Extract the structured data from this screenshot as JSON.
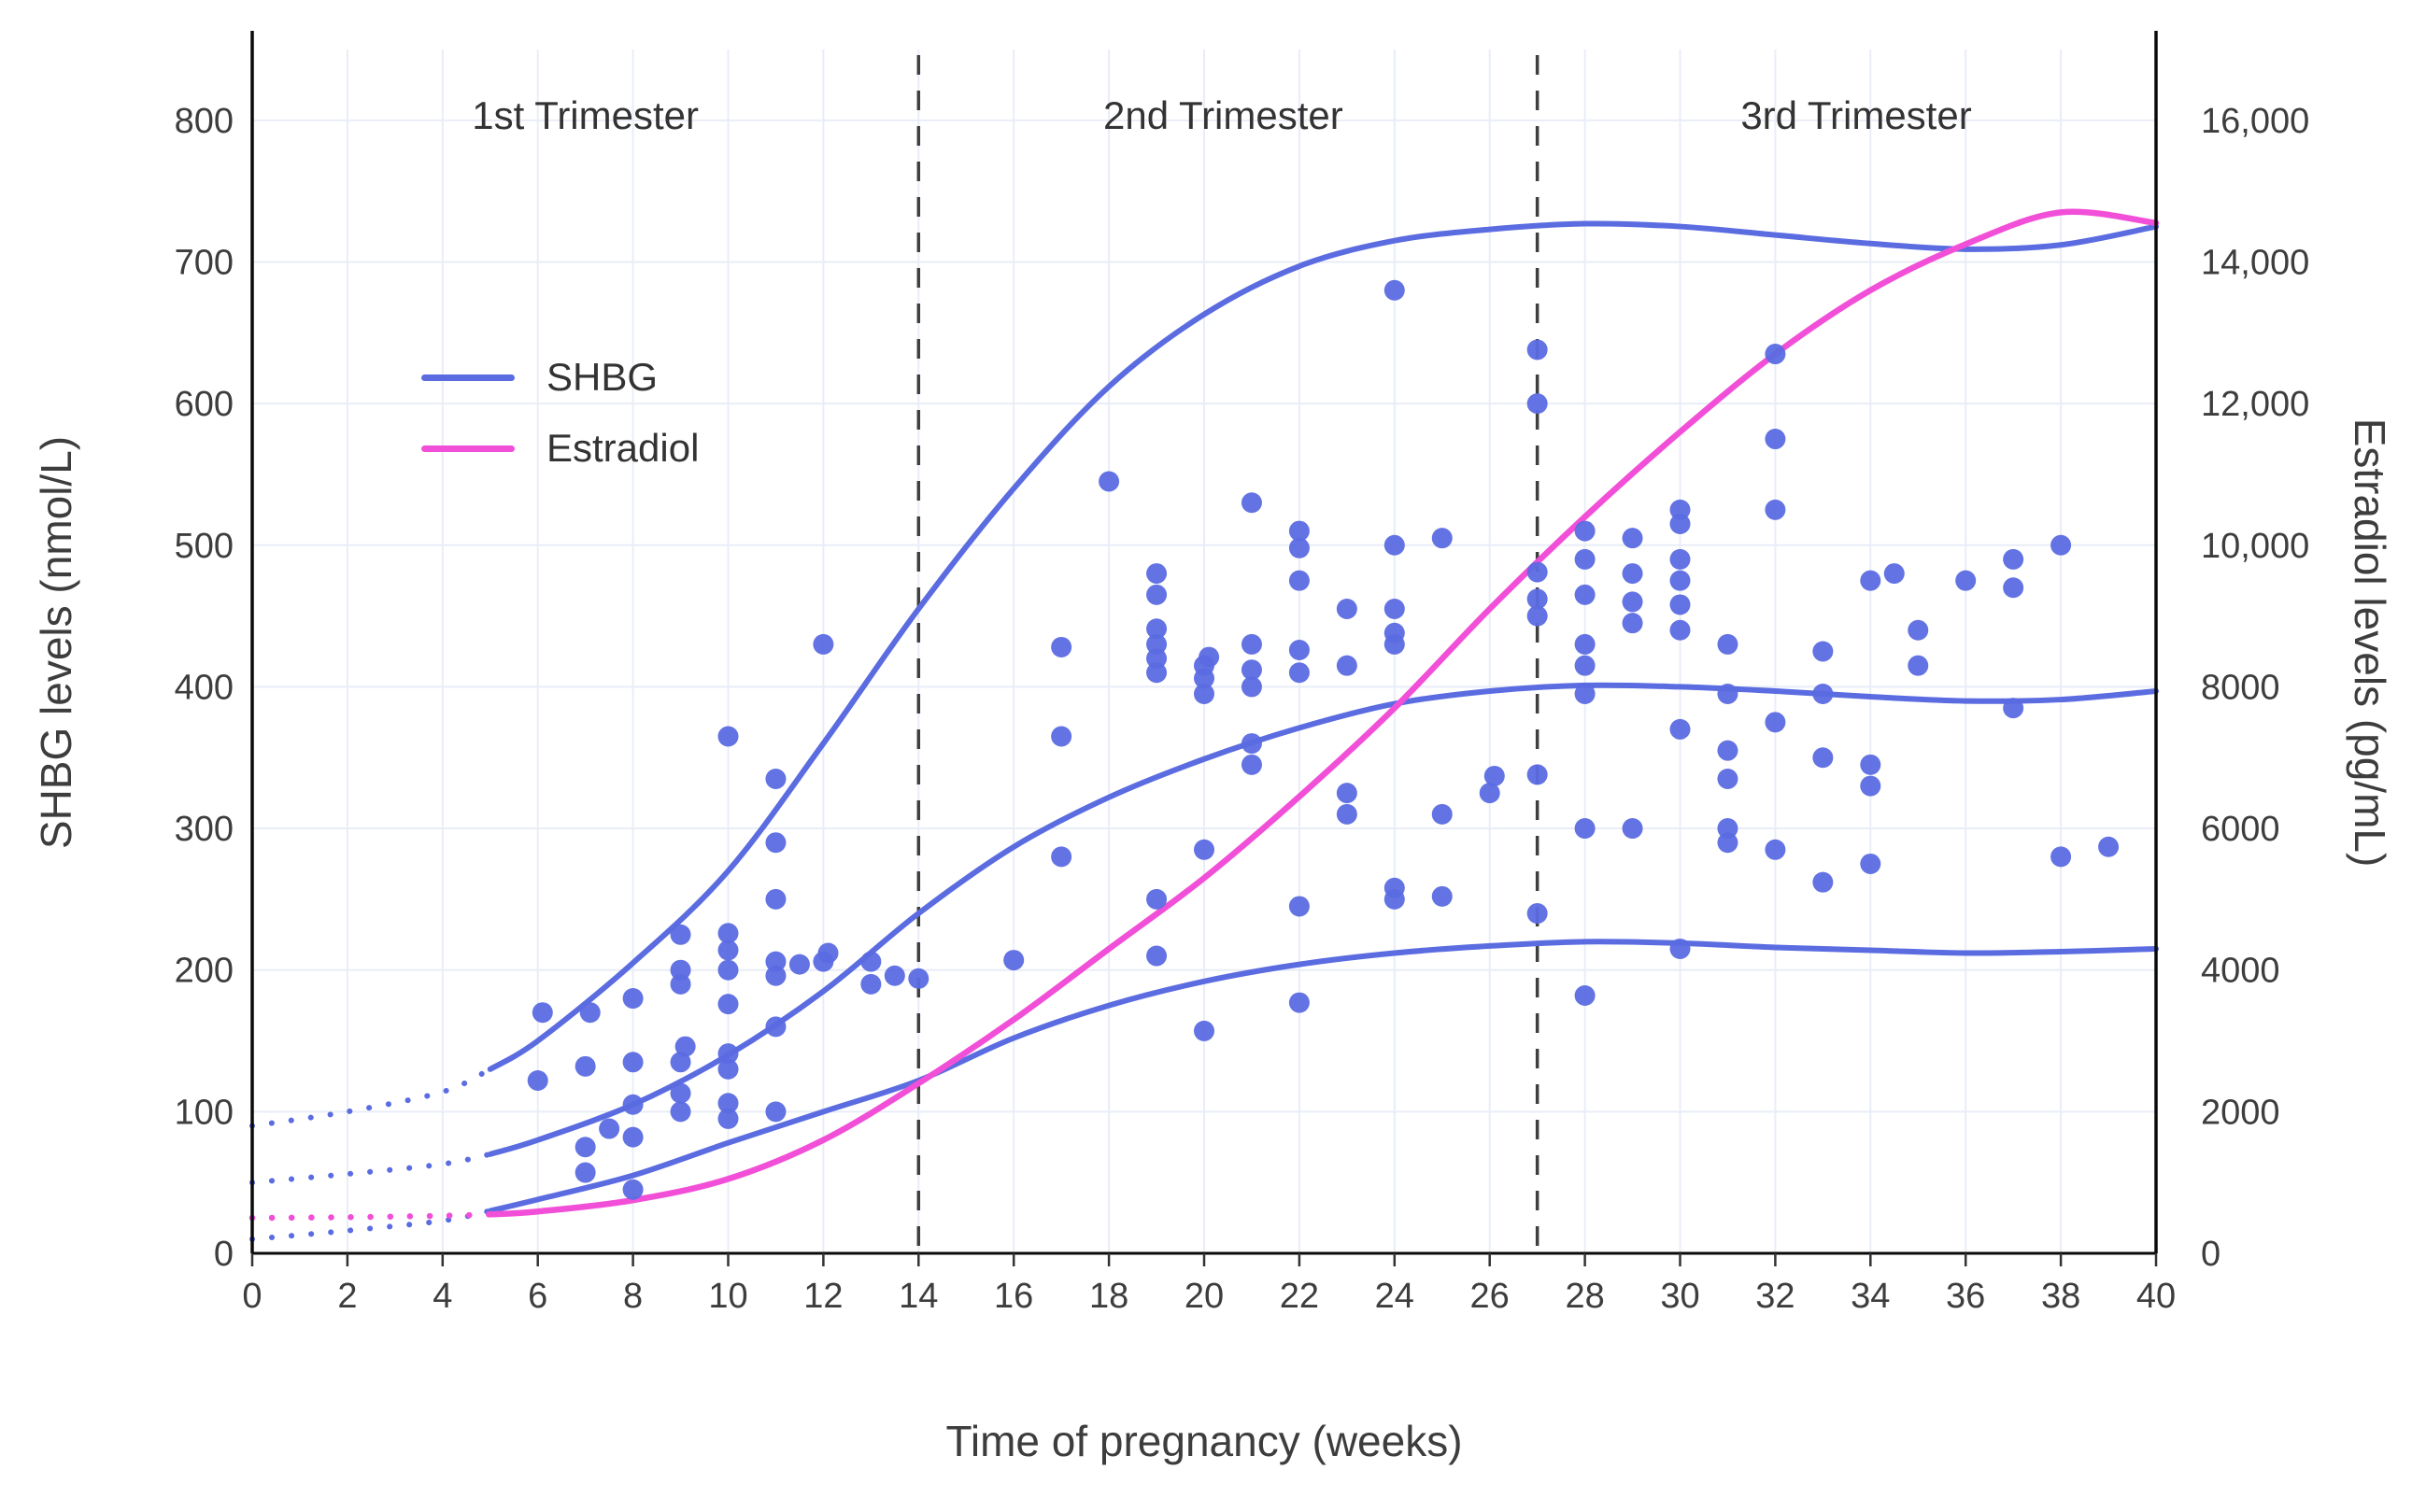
{
  "chart_data": {
    "type": "scatter+line",
    "title": "",
    "xlabel": "Time of pregnancy (weeks)",
    "x_axis": {
      "range": [
        0,
        40
      ],
      "ticks": [
        0,
        2,
        4,
        6,
        8,
        10,
        12,
        14,
        16,
        18,
        20,
        22,
        24,
        26,
        28,
        30,
        32,
        34,
        36,
        38,
        40
      ]
    },
    "left_axis": {
      "label": "SHBG levels (nmol/L)",
      "range": [
        0,
        850
      ],
      "ticks": [
        0,
        100,
        200,
        300,
        400,
        500,
        600,
        700,
        800
      ]
    },
    "right_axis": {
      "label": "Estradiol levels (pg/mL)",
      "range": [
        0,
        17000
      ],
      "tick_values": [
        0,
        2000,
        4000,
        6000,
        8000,
        10000,
        12000,
        14000,
        16000
      ],
      "tick_labels": [
        "0",
        "2000",
        "4000",
        "6000",
        "8000",
        "10,000",
        "12,000",
        "14,000",
        "16,000"
      ]
    },
    "grid": true,
    "legend_position": "upper-left-inside",
    "legend": [
      {
        "label": "SHBG",
        "color": "#5b6ce1"
      },
      {
        "label": "Estradiol",
        "color": "#f24fd8"
      }
    ],
    "trimester_labels": [
      {
        "text": "1st Trimester",
        "week": 7.0
      },
      {
        "text": "2nd Trimester",
        "week": 20.4
      },
      {
        "text": "3rd Trimester",
        "week": 33.7
      }
    ],
    "dividers_weeks": [
      14,
      27
    ],
    "solid_from_week": 5,
    "colors": {
      "shbg": "#5b6ce1",
      "estradiol": "#f24fd8",
      "grid": "#e9edf7",
      "axis": "#0a0a0a",
      "divider": "#3f3f3f",
      "tick_text": "#3d3d3d"
    },
    "curves": [
      {
        "name": "shbg-upper-curve",
        "axis": "left",
        "color": "#5b6ce1",
        "width": 6,
        "x": [
          0,
          2,
          4,
          5,
          6,
          8,
          10,
          12,
          14,
          16,
          18,
          20,
          22,
          24,
          26,
          28,
          30,
          32,
          34,
          36,
          38,
          40
        ],
        "y": [
          90,
          100,
          114,
          130,
          150,
          205,
          270,
          360,
          455,
          540,
          612,
          663,
          697,
          715,
          723,
          727,
          725,
          719,
          713,
          709,
          712,
          725
        ]
      },
      {
        "name": "shbg-median-curve",
        "axis": "left",
        "color": "#5b6ce1",
        "width": 6,
        "x": [
          0,
          2,
          4,
          5,
          6,
          8,
          10,
          12,
          14,
          16,
          18,
          20,
          22,
          24,
          26,
          28,
          30,
          32,
          34,
          36,
          38,
          40
        ],
        "y": [
          50,
          56,
          63,
          70,
          80,
          105,
          140,
          185,
          240,
          287,
          322,
          349,
          371,
          388,
          397,
          401,
          400,
          397,
          393,
          390,
          391,
          397
        ]
      },
      {
        "name": "shbg-lower-curve",
        "axis": "left",
        "color": "#5b6ce1",
        "width": 6,
        "x": [
          0,
          2,
          4,
          5,
          6,
          8,
          10,
          12,
          14,
          16,
          18,
          20,
          22,
          24,
          26,
          28,
          30,
          32,
          34,
          36,
          38,
          40
        ],
        "y": [
          10,
          16,
          23,
          30,
          38,
          55,
          78,
          100,
          122,
          152,
          175,
          192,
          204,
          212,
          217,
          220,
          219,
          216,
          214,
          212,
          213,
          215
        ]
      },
      {
        "name": "estradiol-curve",
        "axis": "right",
        "color": "#f24fd8",
        "width": 6.5,
        "x": [
          0,
          2,
          4,
          5,
          6,
          8,
          10,
          12,
          14,
          16,
          18,
          20,
          22,
          24,
          26,
          28,
          30,
          32,
          34,
          36,
          38,
          40
        ],
        "y": [
          500,
          510,
          530,
          550,
          590,
          750,
          1050,
          1600,
          2400,
          3300,
          4300,
          5300,
          6450,
          7700,
          9100,
          10400,
          11600,
          12700,
          13600,
          14250,
          14700,
          14550
        ]
      }
    ],
    "scatter": {
      "name": "shbg-individual-measurements",
      "axis": "left",
      "color": "#5b6ce1",
      "points": [
        [
          6,
          122
        ],
        [
          6.1,
          170
        ],
        [
          7,
          57
        ],
        [
          7,
          75
        ],
        [
          7,
          132
        ],
        [
          7.1,
          170
        ],
        [
          7.5,
          88
        ],
        [
          8,
          45
        ],
        [
          8,
          82
        ],
        [
          8,
          105
        ],
        [
          8,
          135
        ],
        [
          8,
          180
        ],
        [
          9,
          100
        ],
        [
          9,
          113
        ],
        [
          9,
          135
        ],
        [
          9.1,
          146
        ],
        [
          9,
          190
        ],
        [
          9,
          200
        ],
        [
          9,
          225
        ],
        [
          10,
          95
        ],
        [
          10,
          106
        ],
        [
          10,
          130
        ],
        [
          10,
          141
        ],
        [
          10,
          176
        ],
        [
          10,
          200
        ],
        [
          10,
          214
        ],
        [
          10,
          226
        ],
        [
          10,
          365
        ],
        [
          11,
          100
        ],
        [
          11,
          160
        ],
        [
          11,
          196
        ],
        [
          11,
          206
        ],
        [
          11,
          250
        ],
        [
          11,
          290
        ],
        [
          11,
          335
        ],
        [
          11.5,
          204
        ],
        [
          12,
          206
        ],
        [
          12.1,
          212
        ],
        [
          12,
          430
        ],
        [
          13,
          190
        ],
        [
          13,
          206
        ],
        [
          13.5,
          196
        ],
        [
          14,
          194
        ],
        [
          16,
          207
        ],
        [
          17,
          280
        ],
        [
          17,
          365
        ],
        [
          17,
          428
        ],
        [
          18,
          545
        ],
        [
          19,
          210
        ],
        [
          19,
          250
        ],
        [
          19,
          410
        ],
        [
          19,
          420
        ],
        [
          19,
          430
        ],
        [
          19,
          441
        ],
        [
          19,
          465
        ],
        [
          19,
          480
        ],
        [
          20,
          157
        ],
        [
          20,
          285
        ],
        [
          20,
          395
        ],
        [
          20,
          406
        ],
        [
          20,
          415
        ],
        [
          20.1,
          421
        ],
        [
          21,
          345
        ],
        [
          21,
          360
        ],
        [
          21,
          400
        ],
        [
          21,
          412
        ],
        [
          21,
          430
        ],
        [
          21,
          530
        ],
        [
          22,
          177
        ],
        [
          22,
          245
        ],
        [
          22,
          410
        ],
        [
          22,
          426
        ],
        [
          22,
          475
        ],
        [
          22,
          498
        ],
        [
          22,
          510
        ],
        [
          23,
          310
        ],
        [
          23,
          325
        ],
        [
          23,
          415
        ],
        [
          23,
          455
        ],
        [
          24,
          250
        ],
        [
          24,
          258
        ],
        [
          24,
          430
        ],
        [
          24,
          438
        ],
        [
          24,
          455
        ],
        [
          24,
          500
        ],
        [
          24,
          680
        ],
        [
          25,
          252
        ],
        [
          25,
          310
        ],
        [
          25,
          505
        ],
        [
          26,
          325
        ],
        [
          26.1,
          337
        ],
        [
          27,
          240
        ],
        [
          27,
          338
        ],
        [
          27,
          450
        ],
        [
          27,
          462
        ],
        [
          27,
          481
        ],
        [
          27,
          600
        ],
        [
          27,
          638
        ],
        [
          28,
          182
        ],
        [
          28,
          300
        ],
        [
          28,
          395
        ],
        [
          28,
          415
        ],
        [
          28,
          430
        ],
        [
          28,
          465
        ],
        [
          28,
          490
        ],
        [
          28,
          510
        ],
        [
          29,
          300
        ],
        [
          29,
          445
        ],
        [
          29,
          460
        ],
        [
          29,
          480
        ],
        [
          29,
          505
        ],
        [
          30,
          215
        ],
        [
          30,
          370
        ],
        [
          30,
          440
        ],
        [
          30,
          458
        ],
        [
          30,
          475
        ],
        [
          30,
          490
        ],
        [
          30,
          515
        ],
        [
          30,
          525
        ],
        [
          31,
          290
        ],
        [
          31,
          300
        ],
        [
          31,
          335
        ],
        [
          31,
          355
        ],
        [
          31,
          395
        ],
        [
          31,
          430
        ],
        [
          32,
          285
        ],
        [
          32,
          375
        ],
        [
          32,
          525
        ],
        [
          32,
          575
        ],
        [
          32,
          635
        ],
        [
          33,
          262
        ],
        [
          33,
          350
        ],
        [
          33,
          395
        ],
        [
          33,
          425
        ],
        [
          34,
          275
        ],
        [
          34,
          330
        ],
        [
          34,
          345
        ],
        [
          34,
          475
        ],
        [
          34.5,
          480
        ],
        [
          35,
          415
        ],
        [
          35,
          440
        ],
        [
          36,
          475
        ],
        [
          37,
          385
        ],
        [
          37,
          470
        ],
        [
          37,
          490
        ],
        [
          38,
          280
        ],
        [
          38,
          500
        ],
        [
          39,
          287
        ]
      ]
    }
  }
}
